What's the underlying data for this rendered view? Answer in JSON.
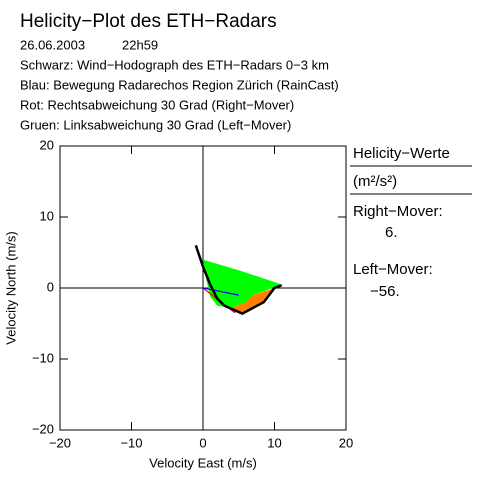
{
  "chart_data": {
    "type": "hodograph",
    "title": "Helicity−Plot des ETH−Radars",
    "date": "26.06.2003",
    "time": "22h59",
    "notes": [
      "Schwarz: Wind−Hodograph des ETH−Radars 0−3 km",
      "Blau: Bewegung Radarechos Region Zürich (RainCast)",
      "Rot: Rechtsabweichung 30 Grad (Right−Mover)",
      "Gruen: Linksabweichung 30 Grad (Left−Mover)"
    ],
    "x_label": "Velocity East (m/s)",
    "y_label": "Velocity North (m/s)",
    "xlim": [
      -20,
      20
    ],
    "ylim": [
      -20,
      20
    ],
    "xticks": [
      {
        "value": -20,
        "label": "−20"
      },
      {
        "value": -10,
        "label": "−10"
      },
      0,
      10,
      20
    ],
    "yticks": [
      {
        "value": -20,
        "label": "−20"
      },
      {
        "value": -10,
        "label": "−10"
      },
      0,
      10,
      20
    ],
    "series": [
      {
        "color": "#00ff00",
        "fill": true,
        "x": [
          0,
          5,
          11,
          7,
          6,
          4,
          2,
          1,
          0.5
        ],
        "y": [
          4,
          2.5,
          0.5,
          -1,
          -2,
          -2.8,
          -2.5,
          -1.2,
          1
        ]
      },
      {
        "color": "#ff8000",
        "fill": true,
        "x": [
          4,
          6,
          7,
          10,
          8.5,
          5.5
        ],
        "y": [
          -2.8,
          -2,
          -1,
          0,
          -2,
          -3.6
        ]
      },
      {
        "color": "#ff0000",
        "fill": false,
        "x": [
          0,
          4.5
        ],
        "y": [
          0,
          -3.5
        ]
      },
      {
        "color": "#0000ff",
        "fill": false,
        "x": [
          0,
          2,
          5
        ],
        "y": [
          0,
          -0.4,
          -1
        ]
      },
      {
        "color": "#000000",
        "fill": false,
        "x": [
          -1,
          0,
          1,
          2,
          3,
          5.5,
          8.5,
          10,
          11
        ],
        "y": [
          6,
          3,
          0.5,
          -1.5,
          -2.5,
          -3.6,
          -2,
          0,
          0.4
        ]
      }
    ],
    "panel": {
      "title": "Helicity−Werte",
      "unit": "(m²/s²)",
      "right_label": "Right−Mover:",
      "right_value": 6,
      "right_value_label": "6.",
      "right_color": "#ff0000",
      "left_label": "Left−Mover:",
      "left_value": -56,
      "left_value_label": "−56.",
      "left_color": "#00ff00"
    }
  }
}
